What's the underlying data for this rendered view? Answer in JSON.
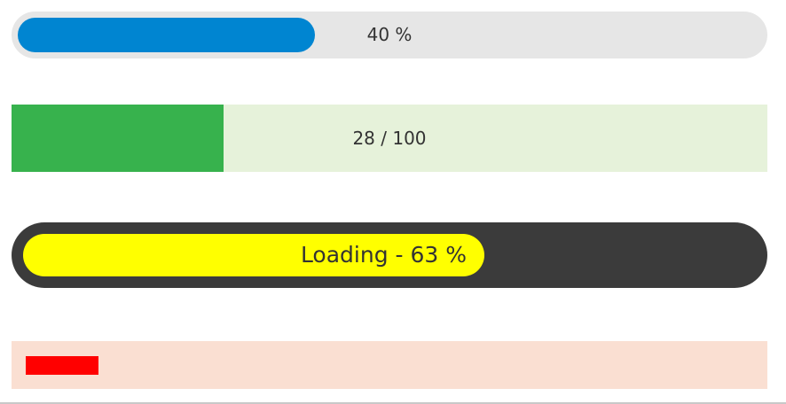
{
  "progress_bars": [
    {
      "label": "40 %",
      "value_percent": 40,
      "track_color": "#e6e6e6",
      "fill_color": "#0085d1"
    },
    {
      "label": "28 / 100",
      "value": 28,
      "max": 100,
      "track_color": "#e6f2da",
      "fill_color": "#37b24d"
    },
    {
      "label": "Loading - 63 %",
      "value_percent": 63,
      "track_color": "#3b3b3b",
      "fill_color": "#ffff00"
    },
    {
      "label": "",
      "value_percent": 10,
      "track_color": "#fadfd2",
      "fill_color": "#ff0000"
    }
  ]
}
